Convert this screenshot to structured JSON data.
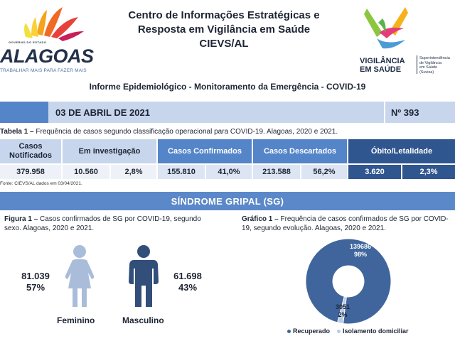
{
  "header": {
    "left_logo": {
      "small_text": "GOVERNO DO ESTADO",
      "state": "ALAGOAS",
      "slogan": "TRABALHAR MAIS PARA FAZER MAIS"
    },
    "title_lines": [
      "Centro de Informações Estratégicas e",
      "Resposta em Vigilância em Saúde",
      "CIEVS/AL"
    ],
    "right_logo": {
      "line1": "VIGILÂNCIA",
      "line2": "EM SAÚDE",
      "sub1": "Superintendência",
      "sub2": "de Vigilância",
      "sub3": "em Saúde",
      "sub4": "(Suvisa)"
    }
  },
  "subtitle": "Informe Epidemiológico - Monitoramento da Emergência - COVID-19",
  "date_bar": {
    "date": "03 DE ABRIL DE 2021",
    "number": "Nº 393"
  },
  "table": {
    "caption_bold": "Tabela 1 –",
    "caption": " Frequência de casos segundo classificação operacional para COVID-19. Alagoas, 2020 e 2021.",
    "headers": [
      "Casos Notificados",
      "Em investigação",
      "Casos Confirmados",
      "Casos Descartados",
      "Óbito/Letalidade"
    ],
    "values": [
      "379.958",
      "10.560",
      "2,8%",
      "155.810",
      "41,0%",
      "213.588",
      "56,2%",
      "3.620",
      "2,3%"
    ],
    "source": "Fonte: CIEVS/AL dados em 03/04/2021."
  },
  "section_title": "SÍNDROME GRIPAL (SG)",
  "figure1": {
    "caption_bold": "Figura 1 –",
    "caption": " Casos confirmados de SG por COVID-19, segundo sexo. Alagoas, 2020 e 2021.",
    "female": {
      "value": "81.039",
      "percent": "57%",
      "label": "Feminino"
    },
    "male": {
      "value": "61.698",
      "percent": "43%",
      "label": "Masculino"
    },
    "colors": {
      "female": "#a9bddb",
      "male": "#324f7a"
    }
  },
  "graph1": {
    "caption_bold": "Gráfico 1 –",
    "caption": " Frequência de casos confirmados de SG por COVID-19, segundo evolução. Alagoas, 2020 e 2021."
  },
  "chart_data": {
    "type": "pie",
    "title": "",
    "series": [
      {
        "name": "Recuperado",
        "value": 139686,
        "label_value": "139686",
        "label_percent": "98%",
        "color": "#3f659c"
      },
      {
        "name": "Isolamento domiciliar",
        "value": 3051,
        "label_value": "3051",
        "label_percent": "2%",
        "color": "#b8cbe6"
      }
    ],
    "legend_position": "bottom"
  }
}
